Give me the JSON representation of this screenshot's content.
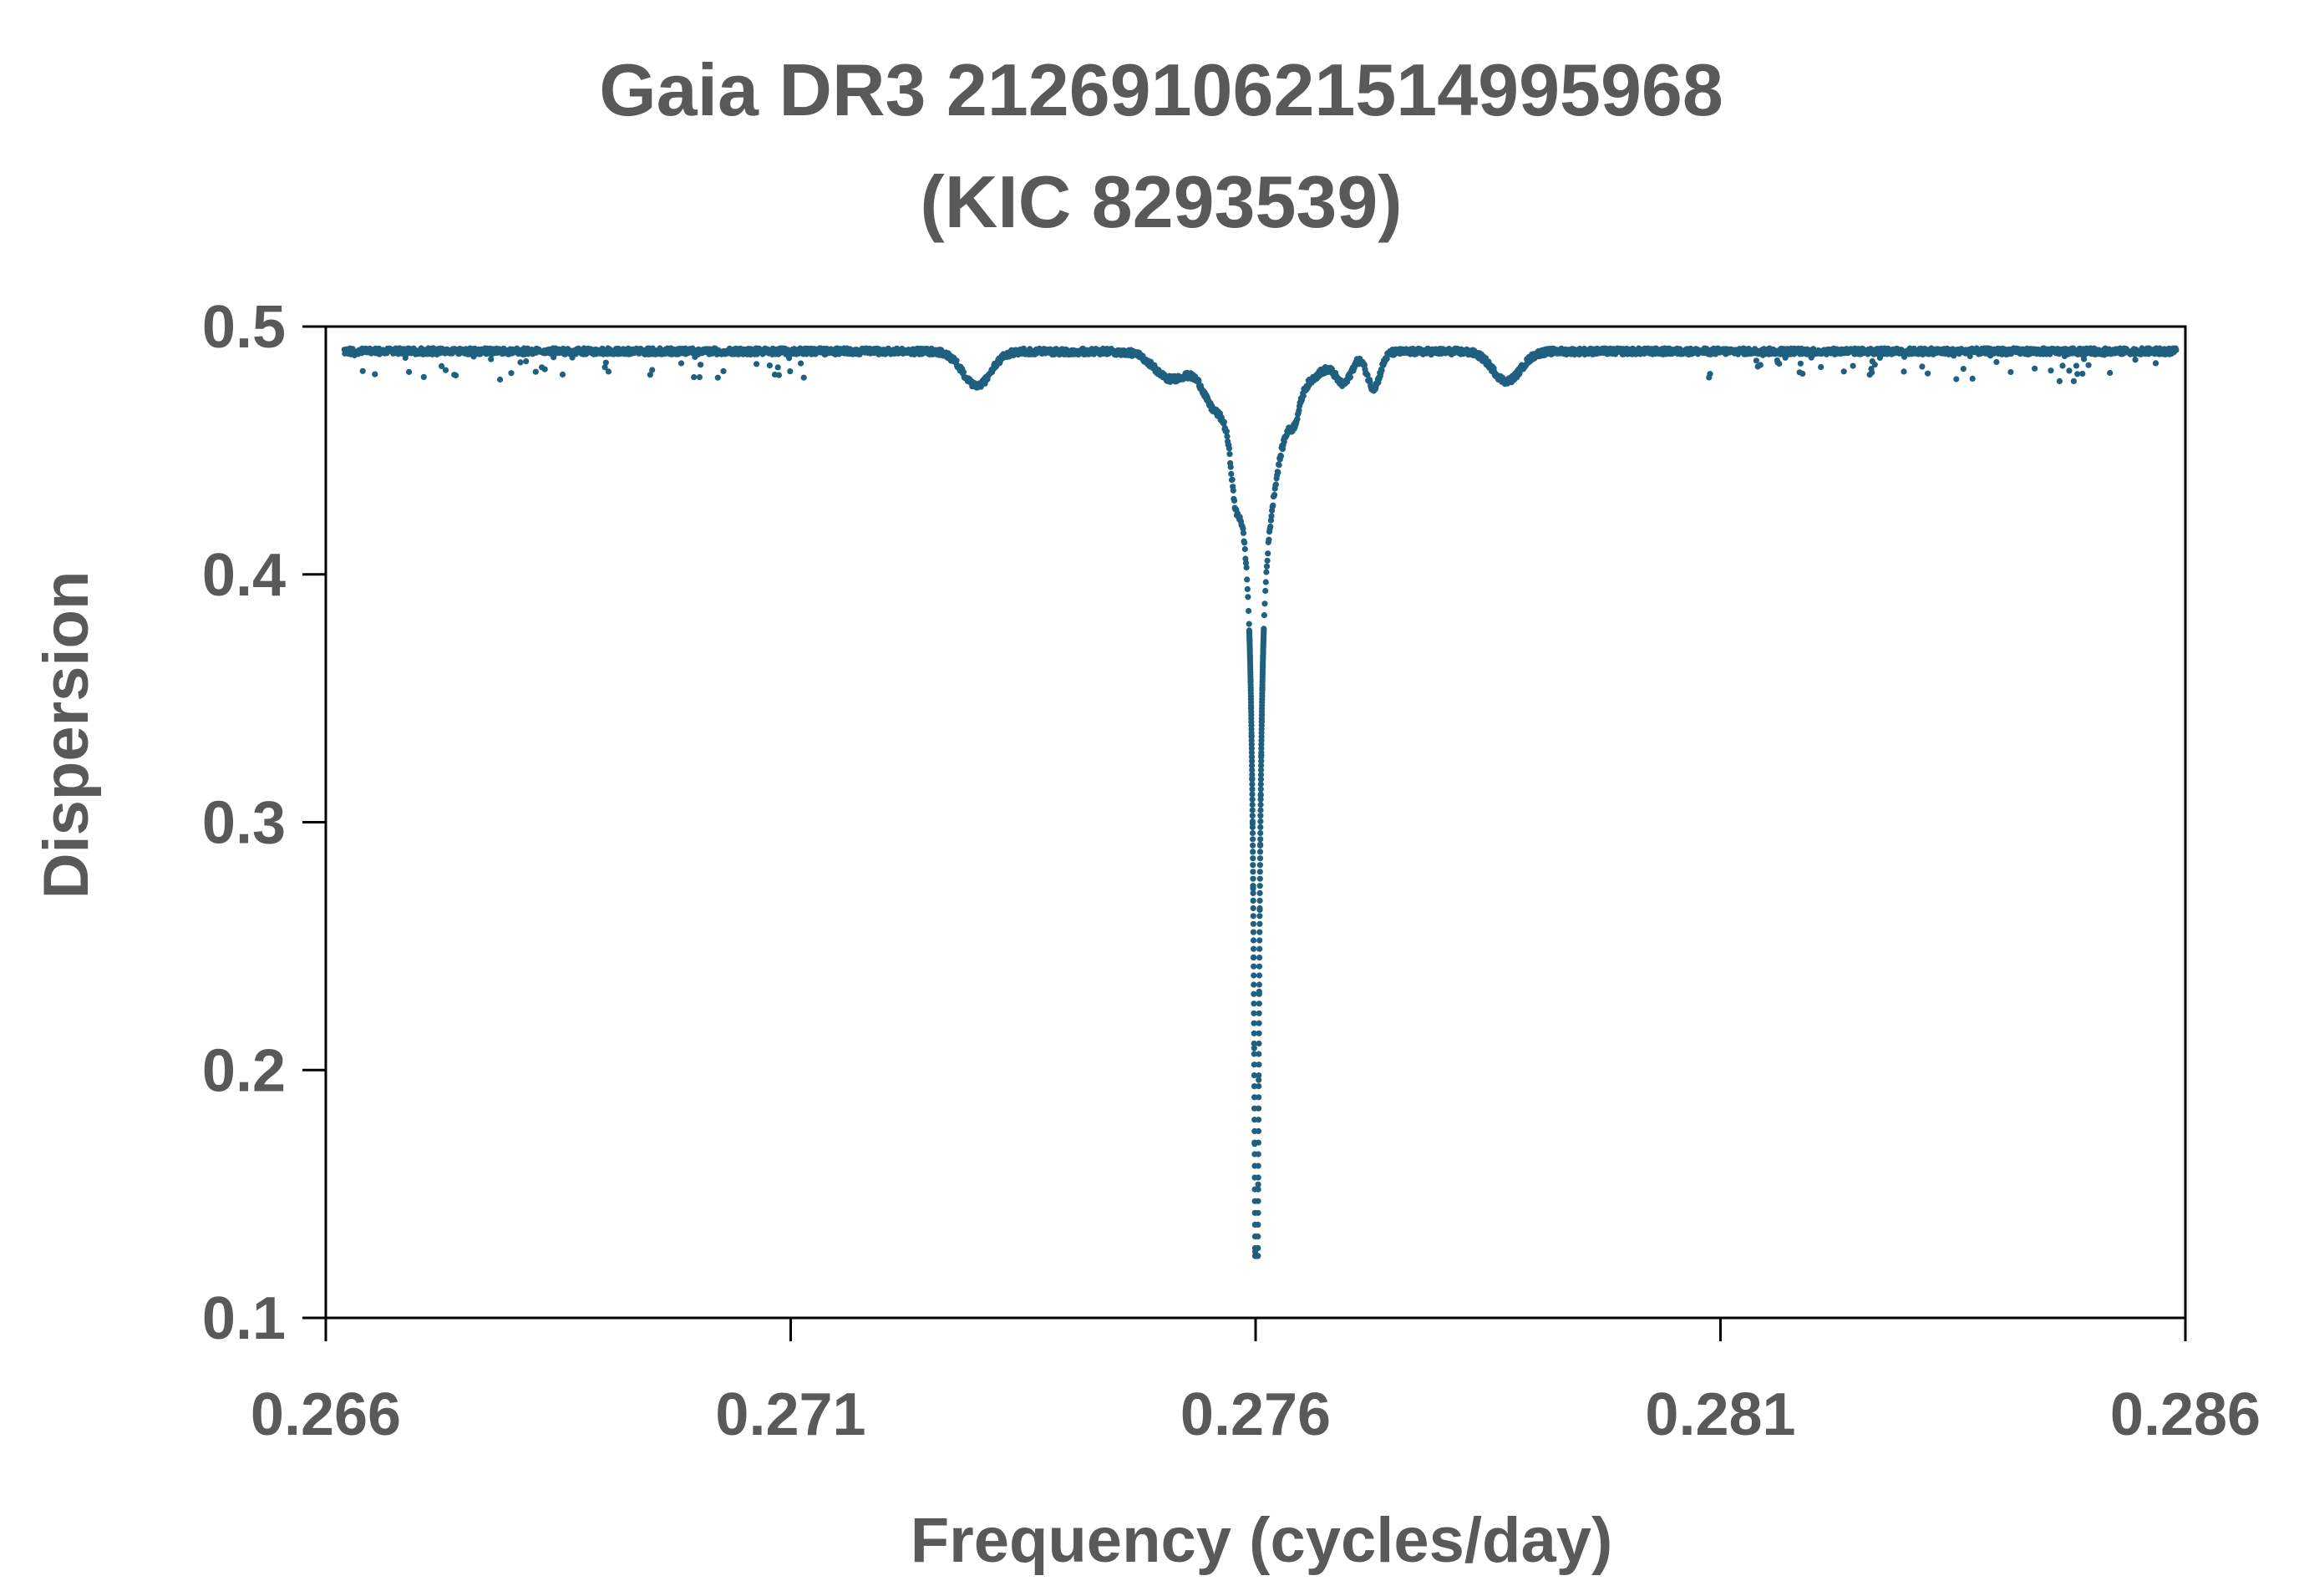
{
  "chart_data": {
    "type": "scatter",
    "title": [
      "Gaia DR3 2126910621514995968",
      "(KIC 8293539)"
    ],
    "xlabel": "Frequency (cycles/day)",
    "ylabel": "Dispersion",
    "xlim": [
      0.266,
      0.286
    ],
    "ylim": [
      0.1,
      0.5
    ],
    "x_ticks": [
      0.266,
      0.271,
      0.276,
      0.281,
      0.286
    ],
    "x_tick_labels": [
      "0.266",
      "0.271",
      "0.276",
      "0.281",
      "0.286"
    ],
    "y_ticks": [
      0.1,
      0.2,
      0.3,
      0.4,
      0.5
    ],
    "y_tick_labels": [
      "0.1",
      "0.2",
      "0.3",
      "0.4",
      "0.5"
    ],
    "grid": false,
    "legend": "none",
    "series_color": "#1f5f7f",
    "x_range": [
      0.2662,
      0.2859
    ],
    "baseline": 0.49,
    "minimum": {
      "x": 0.27601,
      "y": 0.125
    },
    "features": [
      {
        "x": 0.27601,
        "depth": 0.365,
        "width": 3e-05,
        "kind": "core"
      },
      {
        "x": 0.27601,
        "depth": 0.045,
        "width": 0.00018,
        "kind": "wing"
      },
      {
        "x": 0.27601,
        "depth": 0.025,
        "width": 0.00045,
        "kind": "wing"
      },
      {
        "x": 0.27578,
        "depth": 0.015,
        "width": 4e-05,
        "kind": "dip"
      },
      {
        "x": 0.27642,
        "depth": 0.008,
        "width": 5e-05,
        "kind": "dip"
      },
      {
        "x": 0.273,
        "depth": 0.014,
        "width": 0.00015,
        "kind": "dip"
      },
      {
        "x": 0.27505,
        "depth": 0.008,
        "width": 0.00015,
        "kind": "dip"
      },
      {
        "x": 0.27552,
        "depth": 0.006,
        "width": 8e-05,
        "kind": "dip"
      },
      {
        "x": 0.27695,
        "depth": 0.01,
        "width": 8e-05,
        "kind": "dip"
      },
      {
        "x": 0.27727,
        "depth": 0.014,
        "width": 7e-05,
        "kind": "dip"
      },
      {
        "x": 0.2787,
        "depth": 0.012,
        "width": 0.00015,
        "kind": "dip"
      }
    ],
    "sample_points": [
      [
        0.2662,
        0.489
      ],
      [
        0.267,
        0.49
      ],
      [
        0.268,
        0.489
      ],
      [
        0.269,
        0.49
      ],
      [
        0.27,
        0.49
      ],
      [
        0.271,
        0.491
      ],
      [
        0.272,
        0.49
      ],
      [
        0.273,
        0.476
      ],
      [
        0.2737,
        0.49
      ],
      [
        0.2745,
        0.488
      ],
      [
        0.275,
        0.482
      ],
      [
        0.2755,
        0.484
      ],
      [
        0.2757,
        0.478
      ],
      [
        0.2758,
        0.455
      ],
      [
        0.2759,
        0.445
      ],
      [
        0.276,
        0.4
      ],
      [
        0.27601,
        0.125
      ],
      [
        0.2761,
        0.4
      ],
      [
        0.2762,
        0.44
      ],
      [
        0.2764,
        0.47
      ],
      [
        0.2766,
        0.48
      ],
      [
        0.277,
        0.485
      ],
      [
        0.2773,
        0.476
      ],
      [
        0.278,
        0.49
      ],
      [
        0.2787,
        0.478
      ],
      [
        0.279,
        0.489
      ],
      [
        0.28,
        0.49
      ],
      [
        0.281,
        0.49
      ],
      [
        0.282,
        0.49
      ],
      [
        0.283,
        0.489
      ],
      [
        0.284,
        0.489
      ],
      [
        0.285,
        0.49
      ],
      [
        0.2859,
        0.489
      ]
    ]
  }
}
